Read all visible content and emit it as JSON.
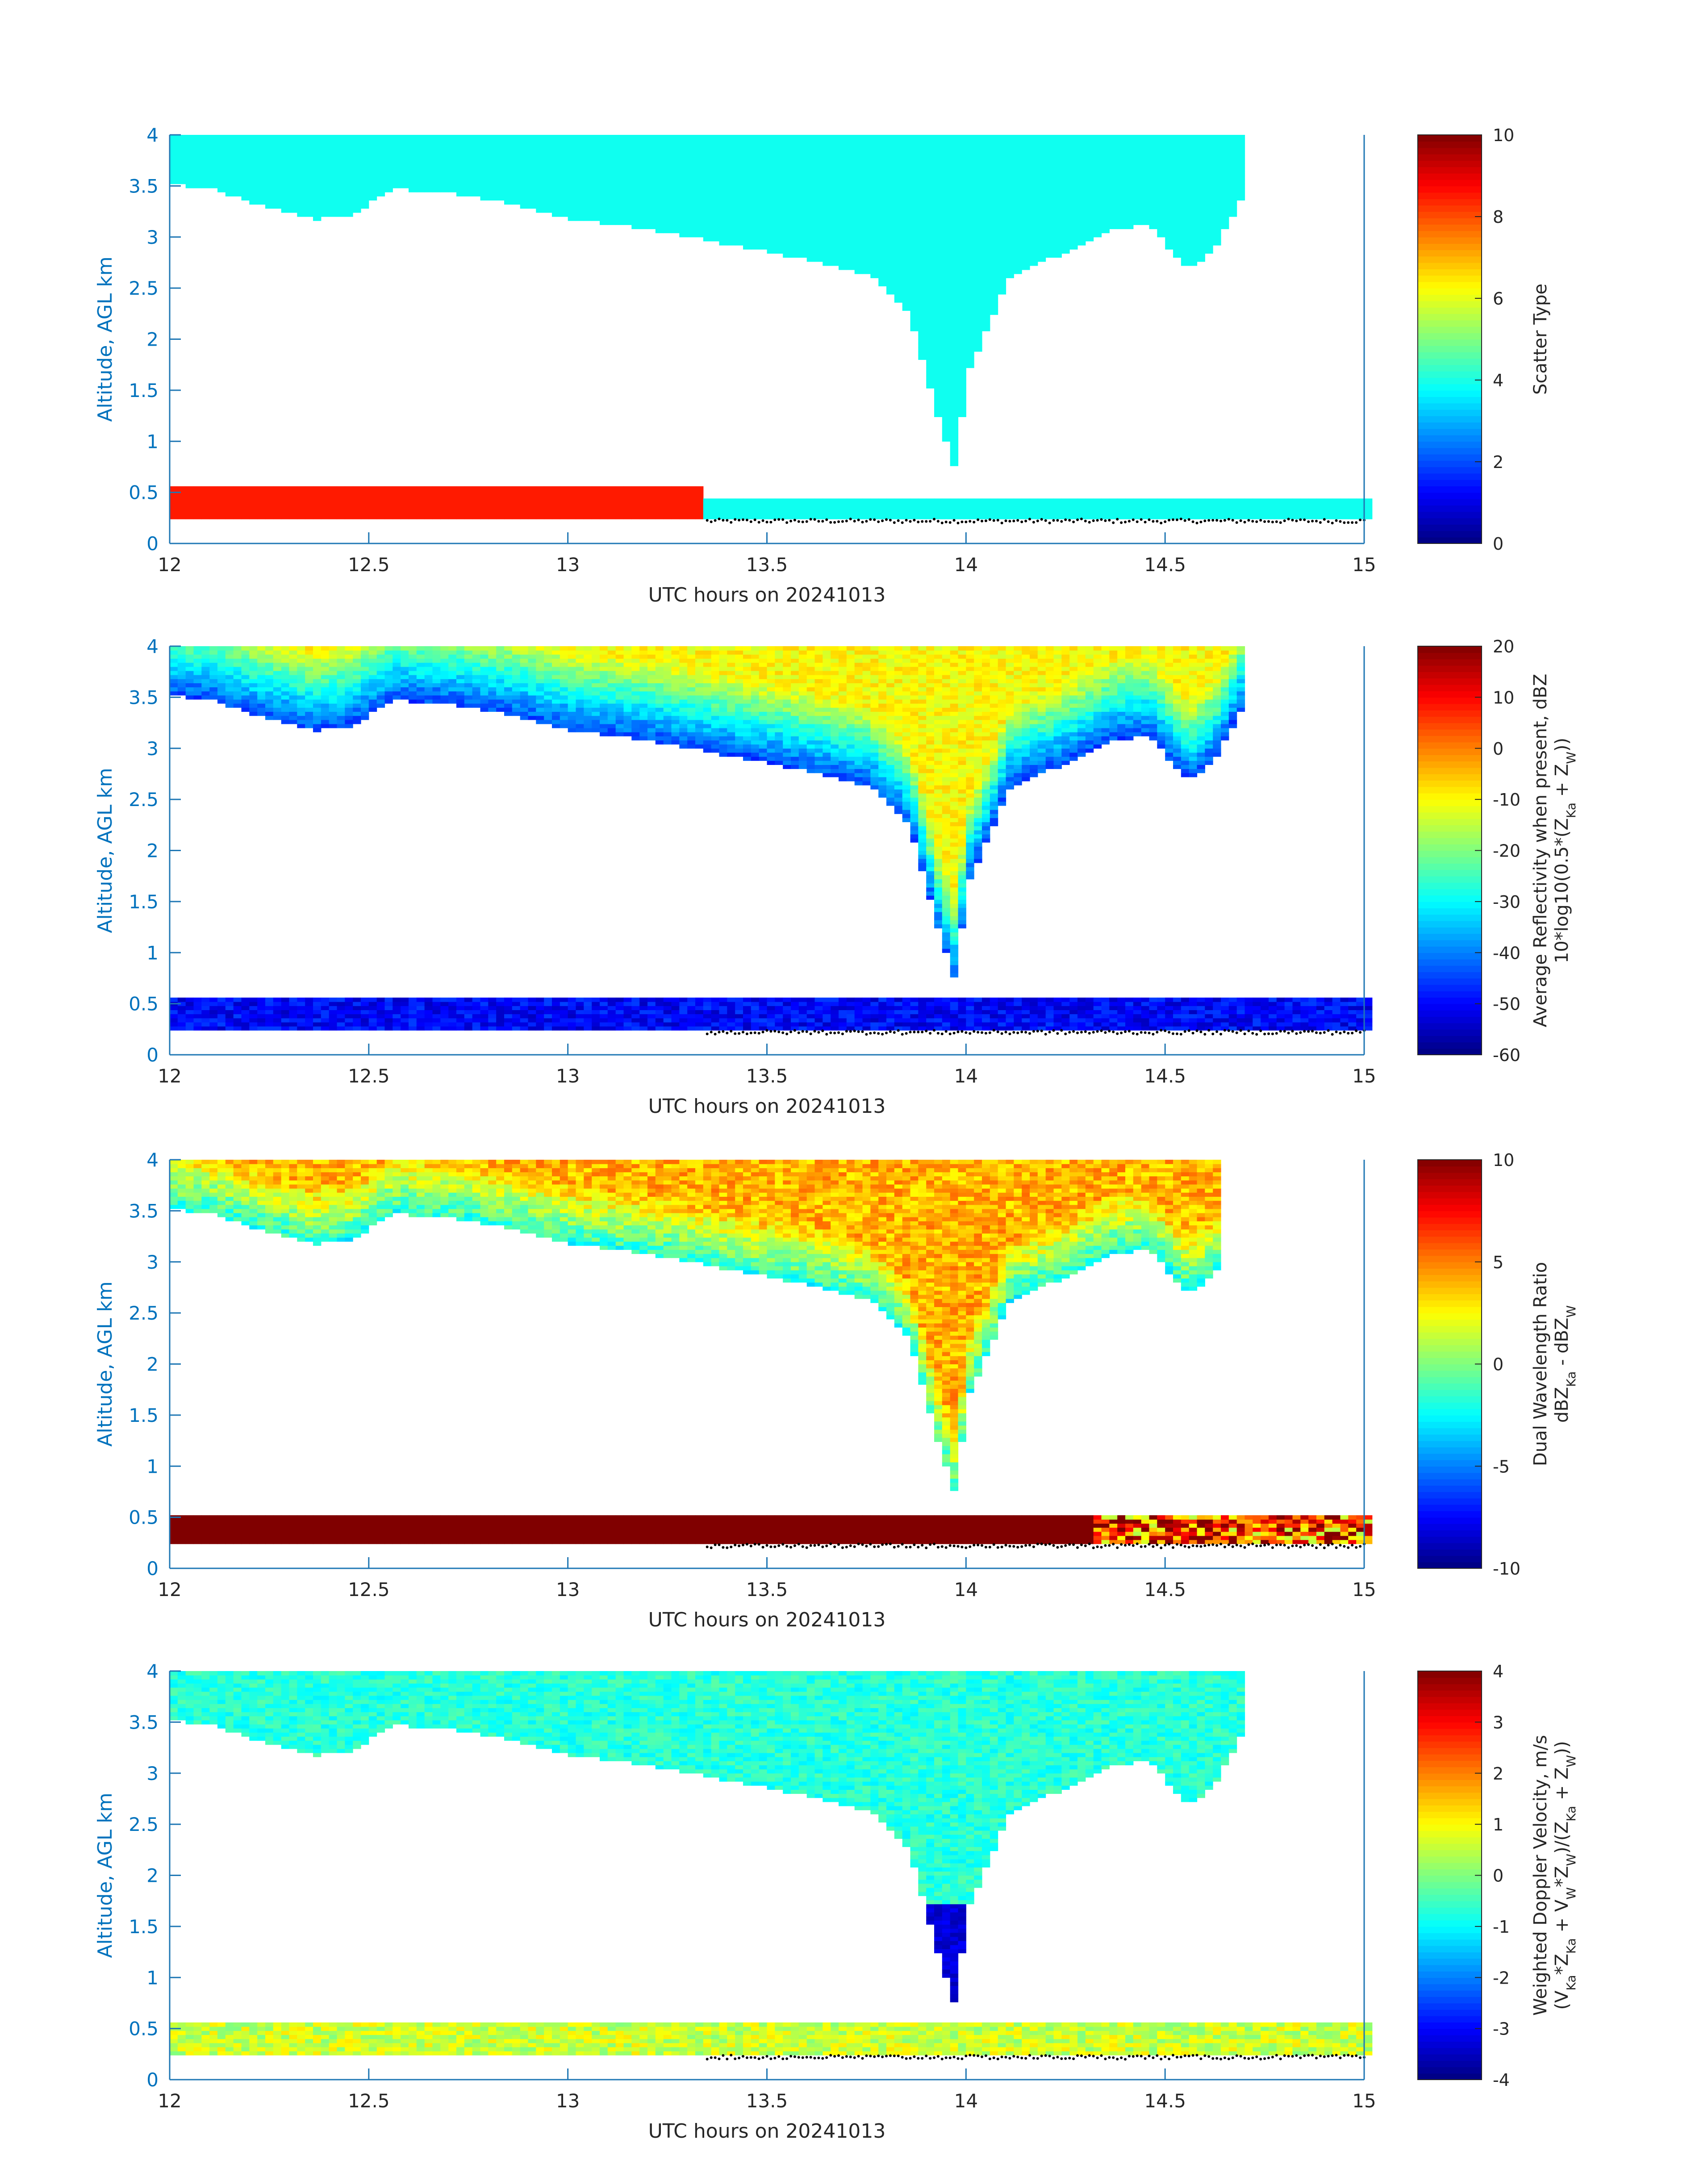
{
  "figure": {
    "panels_count": 4
  },
  "chart_data": [
    {
      "type": "heatmap",
      "panel_id": "scatter-type",
      "xlabel": "UTC hours on 20241013",
      "ylabel": "Altitude, AGL km",
      "xlim": [
        12,
        15
      ],
      "ylim": [
        0,
        4
      ],
      "xticks": [
        12,
        12.5,
        13,
        13.5,
        14,
        14.5,
        15
      ],
      "xtick_labels": [
        "12",
        "12.5",
        "13",
        "13.5",
        "14",
        "14.5",
        "15"
      ],
      "yticks": [
        0,
        0.5,
        1,
        1.5,
        2,
        2.5,
        3,
        3.5,
        4
      ],
      "ytick_labels": [
        "0",
        "0.5",
        "1",
        "1.5",
        "2",
        "2.5",
        "3",
        "3.5",
        "4"
      ],
      "colorbar": {
        "label": "Scatter Type",
        "label2": "",
        "clim": [
          0,
          10
        ],
        "ticks": [
          0,
          2,
          4,
          6,
          8,
          10
        ],
        "tick_labels": [
          "0",
          "2",
          "4",
          "6",
          "8",
          "10"
        ]
      },
      "colormap": "jet",
      "fields": {
        "ice_cloud": {
          "value": 3.9,
          "color": "#1fffdd"
        },
        "low_layer": {
          "value": 8.5,
          "color": "#ff4000"
        }
      },
      "cloud_base_km": [
        [
          12.0,
          3.5
        ],
        [
          12.1,
          3.45
        ],
        [
          12.2,
          3.3
        ],
        [
          12.35,
          3.15
        ],
        [
          12.45,
          3.2
        ],
        [
          12.55,
          3.45
        ],
        [
          12.7,
          3.4
        ],
        [
          12.85,
          3.3
        ],
        [
          13.0,
          3.15
        ],
        [
          13.2,
          3.05
        ],
        [
          13.4,
          2.9
        ],
        [
          13.6,
          2.75
        ],
        [
          13.75,
          2.6
        ],
        [
          13.85,
          2.2
        ],
        [
          13.92,
          1.2
        ],
        [
          13.96,
          0.75
        ],
        [
          14.0,
          1.7
        ],
        [
          14.1,
          2.6
        ],
        [
          14.25,
          2.85
        ],
        [
          14.35,
          3.05
        ],
        [
          14.45,
          3.1
        ],
        [
          14.55,
          2.65
        ],
        [
          14.62,
          2.9
        ],
        [
          14.68,
          3.35
        ],
        [
          14.7,
          4.0
        ]
      ],
      "echo_top_end_hour": 14.68,
      "low_layer_top_km": 0.55,
      "low_layer_end_hour": 13.33,
      "surface_layer_top_km": 0.4,
      "ground_km": 0.22
    },
    {
      "type": "heatmap",
      "panel_id": "reflectivity",
      "xlabel": "UTC hours on 20241013",
      "ylabel": "Altitude, AGL km",
      "xlim": [
        12,
        15
      ],
      "ylim": [
        0,
        4
      ],
      "xticks": [
        12,
        12.5,
        13,
        13.5,
        14,
        14.5,
        15
      ],
      "xtick_labels": [
        "12",
        "12.5",
        "13",
        "13.5",
        "14",
        "14.5",
        "15"
      ],
      "yticks": [
        0,
        0.5,
        1,
        1.5,
        2,
        2.5,
        3,
        3.5,
        4
      ],
      "ytick_labels": [
        "0",
        "0.5",
        "1",
        "1.5",
        "2",
        "2.5",
        "3",
        "3.5",
        "4"
      ],
      "colorbar": {
        "label": "Average Reflectivity when present, dBZ",
        "label2": "10*log10(0.5*(Z",
        "label2_sub1": "Ka",
        "label2_mid": " + Z",
        "label2_sub2": "W",
        "label2_end": "))",
        "clim": [
          -60,
          20
        ],
        "ticks": [
          -60,
          -50,
          -40,
          -30,
          -20,
          -10,
          0,
          10,
          20
        ],
        "tick_labels": [
          "-60",
          "-50",
          "-40",
          "-30",
          "-20",
          "-10",
          "0",
          "10",
          "20"
        ]
      },
      "colormap": "jet",
      "typical_values": {
        "cloud_top": -10,
        "cloud_edge": -45,
        "low_layer": -50
      }
    },
    {
      "type": "heatmap",
      "panel_id": "dual-wavelength-ratio",
      "xlabel": "UTC hours on 20241013",
      "ylabel": "Altitude, AGL km",
      "xlim": [
        12,
        15
      ],
      "ylim": [
        0,
        4
      ],
      "xticks": [
        12,
        12.5,
        13,
        13.5,
        14,
        14.5,
        15
      ],
      "xtick_labels": [
        "12",
        "12.5",
        "13",
        "13.5",
        "14",
        "14.5",
        "15"
      ],
      "yticks": [
        0,
        0.5,
        1,
        1.5,
        2,
        2.5,
        3,
        3.5,
        4
      ],
      "ytick_labels": [
        "0",
        "0.5",
        "1",
        "1.5",
        "2",
        "2.5",
        "3",
        "3.5",
        "4"
      ],
      "colorbar": {
        "label": "Dual Wavelength Ratio",
        "label2": "dBZ",
        "label2_sub1": "Ka",
        "label2_mid": " - dBZ",
        "label2_sub2": "W",
        "label2_end": "",
        "clim": [
          -10,
          10
        ],
        "ticks": [
          -10,
          -5,
          0,
          5,
          10
        ],
        "tick_labels": [
          "-10",
          "-5",
          "0",
          "5",
          "10"
        ]
      },
      "colormap": "jet",
      "typical_values": {
        "cloud_top": 4,
        "cloud_edge": -2,
        "low_layer": 10
      },
      "cloud_echo_end_hour": 14.63
    },
    {
      "type": "heatmap",
      "panel_id": "doppler-velocity",
      "xlabel": "UTC hours on 20241013",
      "ylabel": "Altitude, AGL km",
      "xlim": [
        12,
        15
      ],
      "ylim": [
        0,
        4
      ],
      "xticks": [
        12,
        12.5,
        13,
        13.5,
        14,
        14.5,
        15
      ],
      "xtick_labels": [
        "12",
        "12.5",
        "13",
        "13.5",
        "14",
        "14.5",
        "15"
      ],
      "yticks": [
        0,
        0.5,
        1,
        1.5,
        2,
        2.5,
        3,
        3.5,
        4
      ],
      "ytick_labels": [
        "0",
        "0.5",
        "1",
        "1.5",
        "2",
        "2.5",
        "3",
        "3.5",
        "4"
      ],
      "colorbar": {
        "label": "Weighted Doppler Velocity, m/s",
        "label2": "(V",
        "label2_sub1": "Ka",
        "label2_mid": "*Z",
        "label2_sub2": "Ka",
        "label2_end": " + V",
        "label2_sub3": "W",
        "label2_end2": "*Z",
        "label2_sub4": "W",
        "label2_end3": ")/(Z",
        "label2_sub5": "Ka",
        "label2_end4": " + Z",
        "label2_sub6": "W",
        "label2_end5": "))",
        "clim": [
          -4,
          4
        ],
        "ticks": [
          -4,
          -3,
          -2,
          -1,
          0,
          1,
          2,
          3,
          4
        ],
        "tick_labels": [
          "-4",
          "-3",
          "-2",
          "-1",
          "0",
          "1",
          "2",
          "3",
          "4"
        ]
      },
      "colormap": "jet",
      "typical_values": {
        "cloud": -0.5,
        "fallstreak": -3.5,
        "low_layer": 0.5
      }
    }
  ]
}
